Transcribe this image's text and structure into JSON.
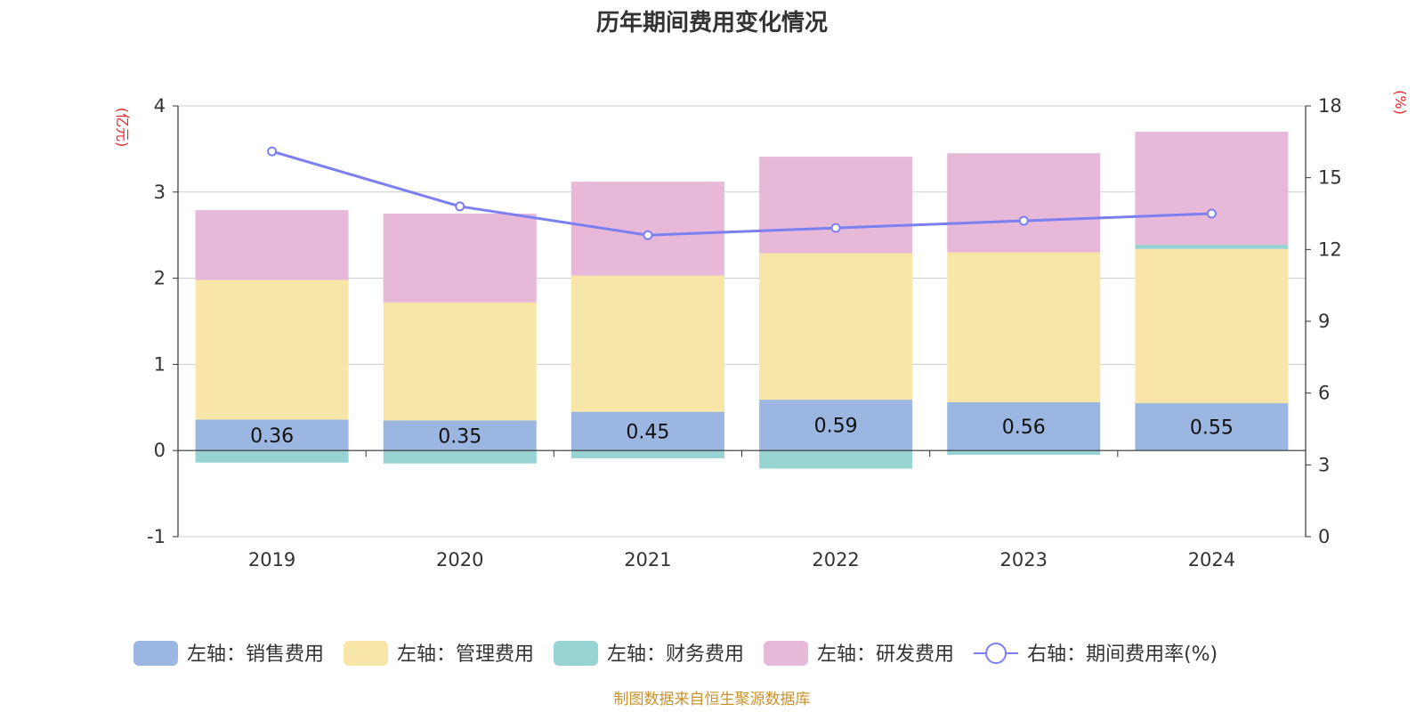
{
  "chart_data": {
    "type": "bar",
    "title": "历年期间费用变化情况",
    "categories": [
      "2019",
      "2020",
      "2021",
      "2022",
      "2023",
      "2024"
    ],
    "left_axis": {
      "unit": "(亿元)",
      "ylim": [
        -1,
        4
      ],
      "ticks": [
        "-1",
        "0",
        "1",
        "2",
        "3",
        "4"
      ]
    },
    "right_axis": {
      "unit": "(%)",
      "ylim": [
        0,
        18
      ],
      "ticks": [
        "0",
        "3",
        "6",
        "9",
        "12",
        "15",
        "18"
      ]
    },
    "series": [
      {
        "name": "左轴：销售费用",
        "type": "bar",
        "axis": "left",
        "color": "#9bb6e0",
        "values": [
          0.36,
          0.35,
          0.45,
          0.59,
          0.56,
          0.55
        ],
        "labels": [
          "0.36",
          "0.35",
          "0.45",
          "0.59",
          "0.56",
          "0.55"
        ]
      },
      {
        "name": "左轴：管理费用",
        "type": "bar",
        "axis": "left",
        "color": "#f7e6a7",
        "values": [
          1.62,
          1.37,
          1.58,
          1.7,
          1.74,
          1.79
        ]
      },
      {
        "name": "左轴：财务费用",
        "type": "bar",
        "axis": "left",
        "color": "#97d3d3",
        "values": [
          -0.14,
          -0.15,
          -0.09,
          -0.21,
          -0.05,
          0.05
        ]
      },
      {
        "name": "左轴：研发费用",
        "type": "bar",
        "axis": "left",
        "color": "#e7b8d8",
        "values": [
          0.81,
          1.03,
          1.09,
          1.12,
          1.15,
          1.31
        ]
      },
      {
        "name": "右轴：期间费用率(%)",
        "type": "line",
        "axis": "right",
        "color": "#7b7ff0",
        "values": [
          16.1,
          13.8,
          12.6,
          12.9,
          13.2,
          13.5
        ]
      }
    ],
    "legend_position": "bottom",
    "grid": true
  },
  "footer": {
    "source": "制图数据来自恒生聚源数据库"
  }
}
